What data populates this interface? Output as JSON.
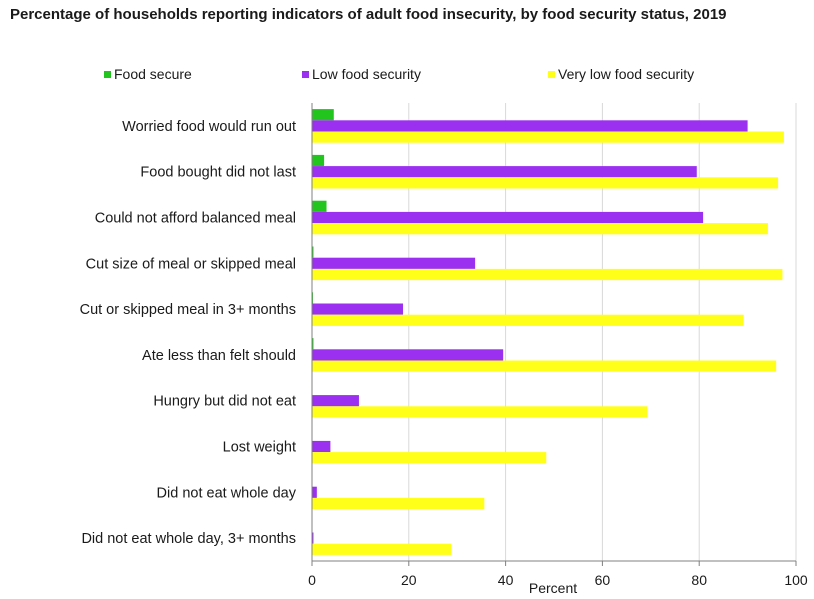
{
  "chart_data": {
    "type": "bar",
    "orientation": "horizontal",
    "title": "Percentage of households reporting indicators of adult food insecurity, by food security status, 2019",
    "xlabel": "Percent",
    "ylabel": "",
    "xlim": [
      0,
      100
    ],
    "xticks": [
      "0",
      "20",
      "40",
      "60",
      "80",
      "100"
    ],
    "grid": true,
    "legend_position": "top",
    "categories": [
      "Worried food would run out",
      "Food bought did not last",
      "Could not afford balanced meal",
      "Cut size of meal or skipped meal",
      "Cut or skipped meal in 3+ months",
      "Ate less than felt should",
      "Hungry but did not eat",
      "Lost weight",
      "Did not eat whole day",
      "Did not eat whole day, 3+ months"
    ],
    "series": [
      {
        "name": "Food secure",
        "color": "#22c51e",
        "values": [
          4.5,
          2.5,
          3.0,
          0.3,
          0.2,
          0.3,
          0.1,
          0.1,
          0.0,
          0.0
        ]
      },
      {
        "name": "Low food security",
        "color": "#9b30f0",
        "values": [
          90,
          79.5,
          80.8,
          33.7,
          18.8,
          39.5,
          9.7,
          3.8,
          1.0,
          0.3
        ]
      },
      {
        "name": "Very low food security",
        "color": "#ffff1a",
        "values": [
          97.5,
          96.3,
          94.2,
          97.2,
          89.2,
          95.9,
          69.3,
          48.4,
          35.6,
          28.8
        ]
      }
    ]
  }
}
